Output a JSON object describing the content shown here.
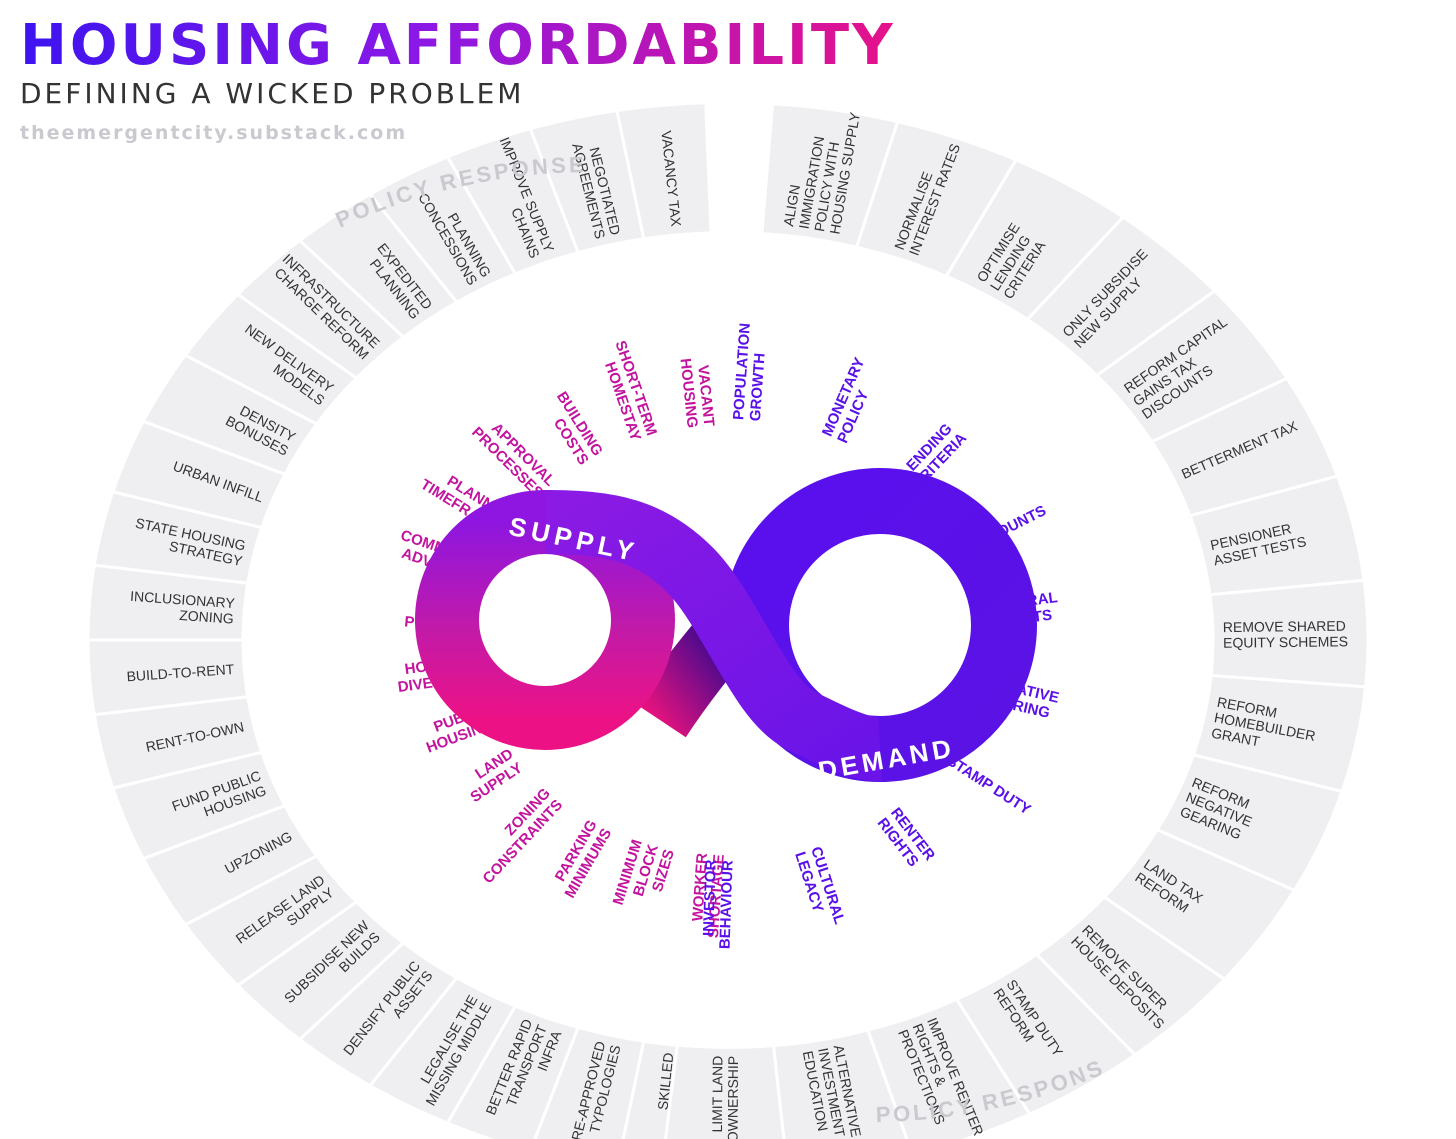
{
  "header": {
    "title": "HOUSING AFFORDABILITY",
    "subtitle": "DEFINING A WICKED PROBLEM",
    "source": "theemergentcity.substack.com"
  },
  "colors": {
    "supply": "#c2149e",
    "supply_pink": "#e8128a",
    "demand": "#5a10e8",
    "demand_deep": "#3e0cd8",
    "ring": "#efeff2",
    "ring_border": "#ffffff",
    "policy_text": "#333333",
    "ring_label": "#c9c9cf"
  },
  "loop": {
    "supply_label": "SUPPLY",
    "demand_label": "DEMAND"
  },
  "ring_labels": {
    "top": "POLICY RESPONSE",
    "bottom": "POLICY RESPONSE"
  },
  "supply_factors": [
    "VACANT HOUSING",
    "SHORT-TERM HOMESTAY",
    "BUILDING COSTS",
    "APPROVAL PROCESSES",
    "PLANNING TIMEFRAMES",
    "COMMUNITY ADVOCACY",
    "LOCAL POLITICS",
    "HOUSING DIVERSITY",
    "PUBLIC HOUSING",
    "LAND SUPPLY",
    "ZONING CONSTRAINTS",
    "PARKING MINIMUMS",
    "MINIMUM BLOCK SIZES",
    "WORKER SHORTAGE"
  ],
  "demand_factors": [
    "POPULATION GROWTH",
    "MONETARY POLICY",
    "LENDING CRITERIA",
    "TAX DISCOUNTS",
    "FEDERAL GRANTS",
    "NEGATIVE GEARING",
    "STAMP DUTY",
    "RENTER RIGHTS",
    "CULTURAL LEGACY",
    "INVESTOR BEHAVIOUR"
  ],
  "supply_policies": [
    "VACANCY TAX",
    "NEGOTIATED AGREEMENTS",
    "IMPROVE SUPPLY CHAINS",
    "PLANNING CONCESSIONS",
    "EXPEDITED PLANNING",
    "INFRASTRUCTURE CHARGE REFORM",
    "NEW DELIVERY MODELS",
    "DENSITY BONUSES",
    "URBAN INFILL",
    "STATE HOUSING STRATEGY",
    "INCLUSIONARY ZONING",
    "BUILD-TO-RENT",
    "RENT-TO-OWN",
    "FUND PUBLIC HOUSING",
    "UPZONING",
    "RELEASE LAND SUPPLY",
    "SUBSIDISE NEW BUILDS",
    "DENSIFY PUBLIC ASSETS",
    "LEGALISE THE MISSING MIDDLE",
    "BETTER RAPID TRANSPORT INFRA",
    "PRE-APPROVED TYPOLOGIES",
    "SKILLED IMMIGRATION"
  ],
  "demand_policies": [
    "ALIGN IMMIGRATION POLICY WITH HOUSING SUPPLY",
    "NORMALISE INTEREST RATES",
    "OPTIMISE LENDING CRITERIA",
    "ONLY SUBSIDISE NEW SUPPLY",
    "REFORM CAPITAL GAINS TAX DISCOUNTS",
    "BETTERMENT TAX",
    "PENSIONER ASSET TESTS",
    "REMOVE SHARED EQUITY SCHEMES",
    "REFORM HOMEBUILDER GRANT",
    "REFORM NEGATIVE GEARING",
    "LAND TAX REFORM",
    "REMOVE SUPER HOUSE DEPOSITS",
    "STAMP DUTY REFORM",
    "IMPROVE RENTER RIGHTS & PROTECTIONS",
    "ALTERNATIVE INVESTMENT EDUCATION",
    "LIMIT LAND OWNERSHIP"
  ]
}
